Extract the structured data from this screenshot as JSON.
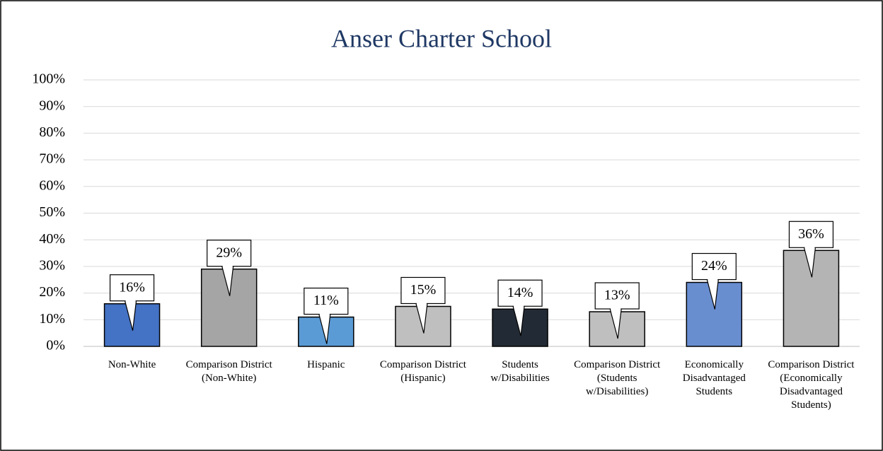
{
  "chart_data": {
    "type": "bar",
    "title": "Anser Charter School",
    "categories": [
      "Non-White",
      "Comparison District (Non-White)",
      "Hispanic",
      "Comparison District (Hispanic)",
      "Students w/Disabilities",
      "Comparison District (Students w/Disabilities)",
      "Economically Disadvantaged Students",
      "Comparison District (Economically Disadvantaged Students)"
    ],
    "values": [
      16,
      29,
      11,
      15,
      14,
      13,
      24,
      36
    ],
    "value_labels": [
      "16%",
      "29%",
      "11%",
      "15%",
      "14%",
      "13%",
      "24%",
      "36%"
    ],
    "colors": [
      "#4472c4",
      "#a5a5a5",
      "#5b9bd5",
      "#bfbfbf",
      "#222a35",
      "#bfbfbf",
      "#698ed0",
      "#b4b4b4"
    ],
    "ylim": [
      0,
      100
    ],
    "yticks": [
      {
        "value": 0,
        "label": "0%"
      },
      {
        "value": 10,
        "label": "10%"
      },
      {
        "value": 20,
        "label": "20%"
      },
      {
        "value": 30,
        "label": "30%"
      },
      {
        "value": 40,
        "label": "40%"
      },
      {
        "value": 50,
        "label": "50%"
      },
      {
        "value": 60,
        "label": "60%"
      },
      {
        "value": 70,
        "label": "70%"
      },
      {
        "value": 80,
        "label": "80%"
      },
      {
        "value": 90,
        "label": "90%"
      },
      {
        "value": 100,
        "label": "100%"
      }
    ],
    "grid": true
  }
}
